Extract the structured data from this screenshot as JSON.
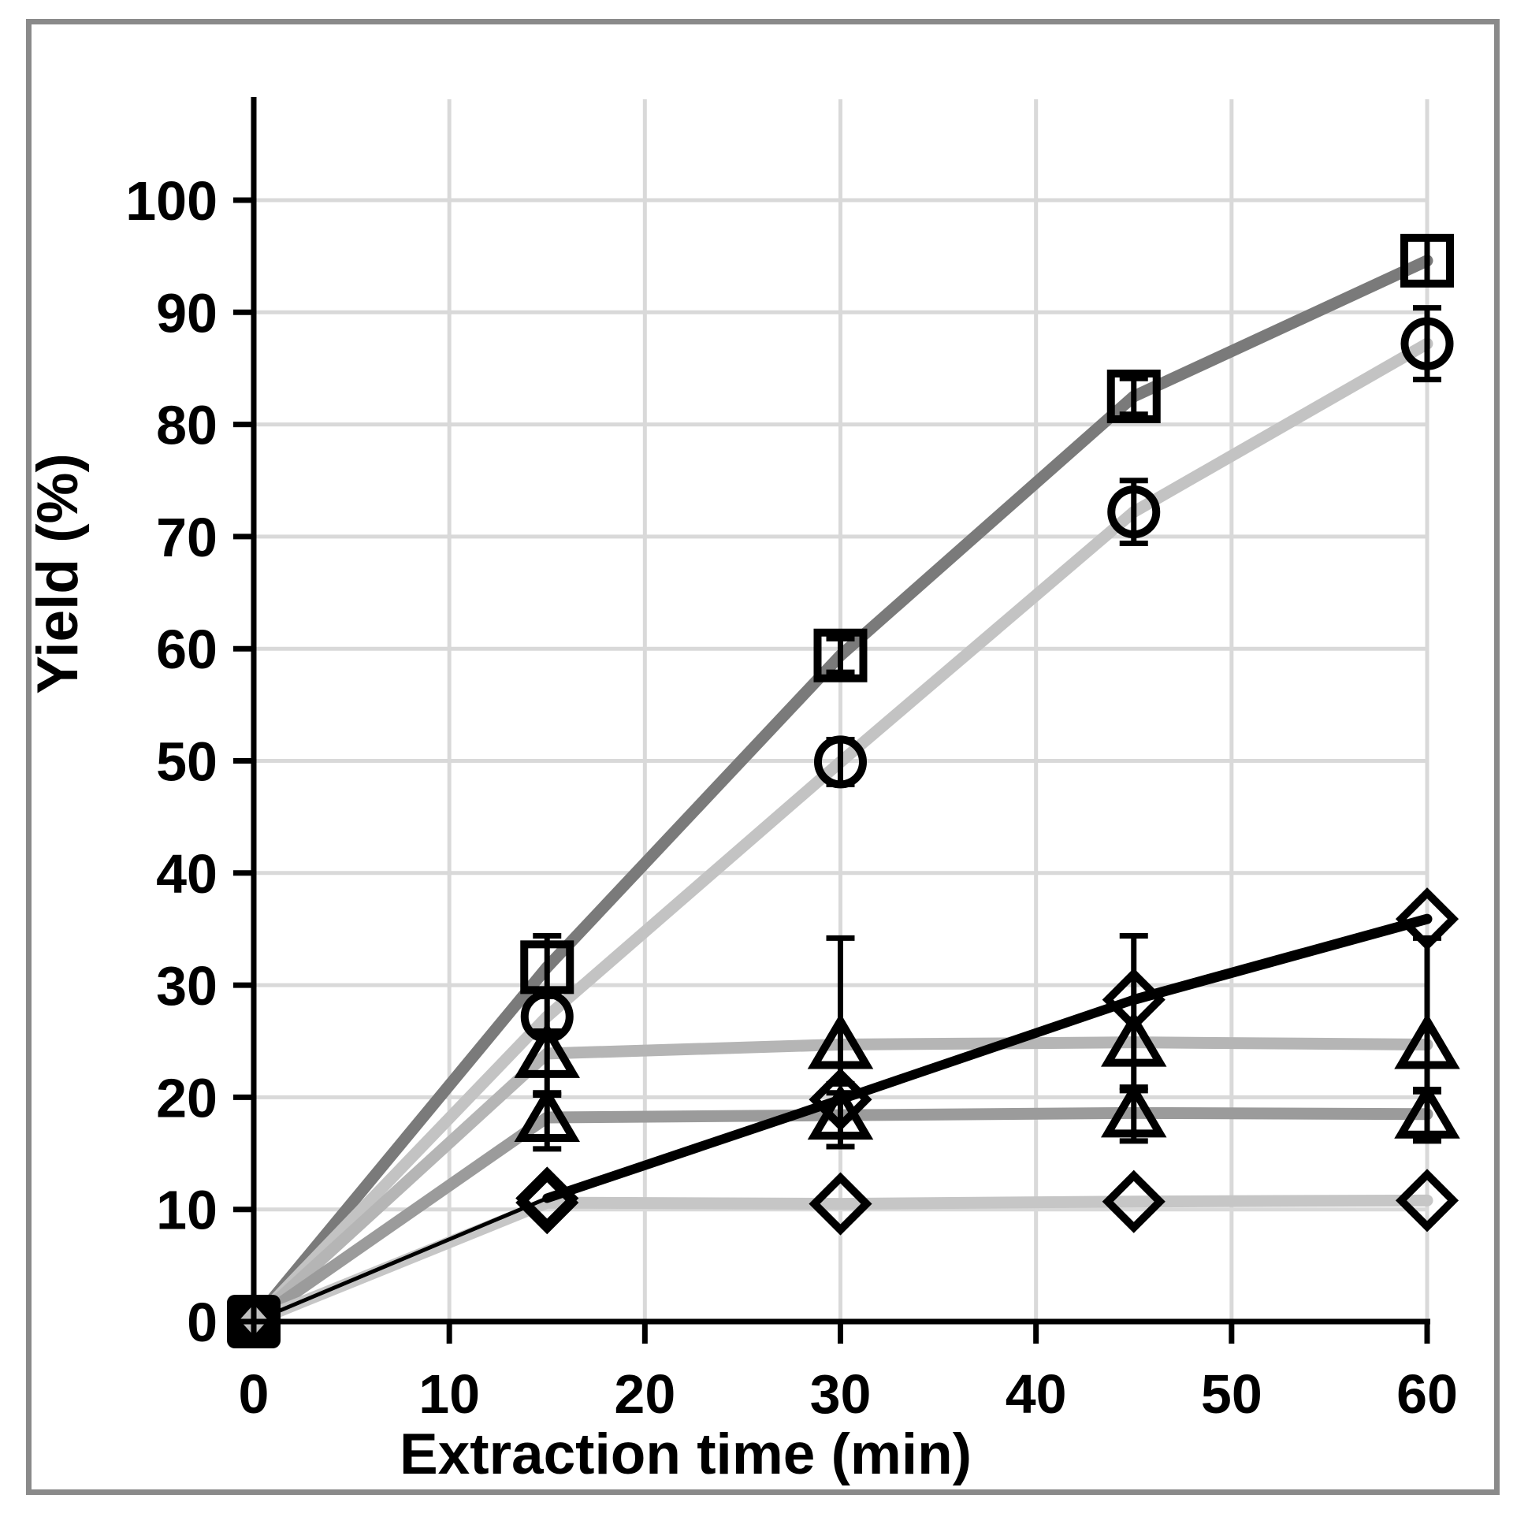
{
  "figure": {
    "background_color": "#ffffff",
    "border_color": "#8a8a8a",
    "axis_color": "#000000",
    "gridline_color": "#d9d9d9",
    "marker_color": "#000000"
  },
  "chart_data": {
    "type": "line",
    "title": "",
    "xlabel": "Extraction time (min)",
    "ylabel": "Yield (%)",
    "x": [
      0,
      15,
      30,
      45,
      60
    ],
    "xlim": [
      0,
      60
    ],
    "ylim": [
      0,
      109
    ],
    "xticks": [
      0,
      10,
      20,
      30,
      40,
      50,
      60
    ],
    "yticks": [
      0,
      10,
      20,
      30,
      40,
      50,
      60,
      70,
      80,
      90,
      100
    ],
    "grid": true,
    "legend_position": "none",
    "series": [
      {
        "name": "open-square-dark-gray-line",
        "marker": "square",
        "line_color": "#7a7a7a",
        "values": [
          0,
          31.6,
          59.4,
          82.5,
          94.6
        ],
        "err_minus": [
          0,
          2.5,
          1.5,
          1.6,
          2.0
        ],
        "err_plus": [
          0,
          2.8,
          1.5,
          1.6,
          2.0
        ]
      },
      {
        "name": "open-circle-light-gray-line",
        "marker": "circle",
        "line_color": "#c3c3c3",
        "values": [
          0,
          27.2,
          49.9,
          72.2,
          87.2
        ],
        "err_minus": [
          0,
          1.8,
          2.0,
          2.8,
          3.2
        ],
        "err_plus": [
          0,
          1.8,
          2.0,
          2.8,
          3.2
        ]
      },
      {
        "name": "open-triangle-upper-light-gray-line",
        "marker": "triangle",
        "line_color": "#b5b5b5",
        "values": [
          0,
          23.9,
          24.7,
          24.9,
          24.7
        ],
        "err_minus": [
          0,
          3.5,
          3.5,
          4.0,
          4.0
        ],
        "err_plus": [
          0,
          2.0,
          9.5,
          9.5,
          9.5
        ]
      },
      {
        "name": "open-triangle-lower-medium-gray-line",
        "marker": "triangle",
        "line_color": "#9b9b9b",
        "values": [
          0,
          18.2,
          18.4,
          18.6,
          18.5
        ],
        "err_minus": [
          0,
          2.8,
          2.8,
          2.5,
          2.4
        ],
        "err_plus": [
          0,
          2.0,
          2.0,
          2.0,
          2.0
        ]
      },
      {
        "name": "open-diamond-black-line",
        "marker": "diamond",
        "line_color": "#000000",
        "values": [
          0,
          11.0,
          19.8,
          28.7,
          35.9
        ],
        "err_minus": [
          0,
          0,
          0,
          0,
          0
        ],
        "err_plus": [
          0,
          0,
          0,
          0,
          0
        ]
      },
      {
        "name": "open-diamond-flat-light-gray-line",
        "marker": "diamond",
        "line_color": "#c6c6c6",
        "values": [
          0,
          10.6,
          10.5,
          10.7,
          10.8
        ],
        "err_minus": [
          0,
          0,
          0,
          0,
          0
        ],
        "err_plus": [
          0,
          0,
          0,
          0,
          0
        ]
      }
    ]
  }
}
